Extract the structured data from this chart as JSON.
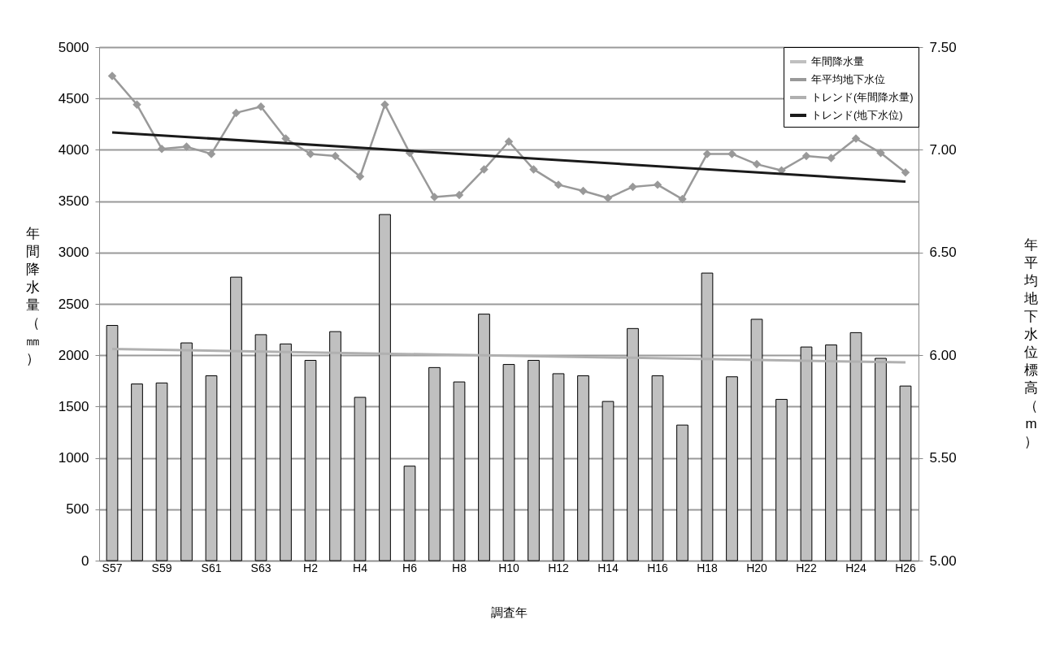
{
  "chart_data": {
    "type": "bar",
    "xlabel": "調査年",
    "ylabel": "年間降水量（㎜）",
    "y2label": "年平均地下水位標高（m）",
    "categories": [
      "S57",
      null,
      "S59",
      null,
      "S61",
      null,
      "S63",
      null,
      "H2",
      null,
      "H4",
      null,
      "H6",
      null,
      "H8",
      null,
      "H10",
      null,
      "H12",
      null,
      "H14",
      null,
      "H16",
      null,
      "H18",
      null,
      "H20",
      null,
      "H22",
      null,
      "H24",
      null,
      "H26"
    ],
    "series": [
      {
        "name": "年間降水量",
        "color": "#c0c0c0",
        "values": [
          2290,
          1720,
          1730,
          2120,
          1800,
          2760,
          2200,
          2110,
          1950,
          2230,
          1590,
          3370,
          920,
          1880,
          1740,
          2400,
          1910,
          1950,
          1820,
          1800,
          1550,
          2260,
          1800,
          1320,
          2800,
          1790,
          2350,
          1570,
          2080,
          2100,
          2220,
          1970,
          1700
        ]
      },
      {
        "name": "年平均地下水位",
        "type": "line",
        "axis": "y2",
        "marker": "diamond",
        "color": "#999999",
        "values": [
          7.36,
          7.22,
          7.005,
          7.015,
          6.98,
          7.18,
          7.21,
          7.055,
          6.98,
          6.97,
          6.87,
          7.22,
          6.985,
          6.77,
          6.78,
          6.905,
          7.04,
          6.905,
          6.83,
          6.8,
          6.765,
          6.82,
          6.83,
          6.76,
          6.98,
          6.98,
          6.93,
          6.9,
          6.97,
          6.96,
          7.055,
          6.985,
          6.89
        ]
      },
      {
        "name": "トレンド(年間降水量)",
        "type": "line",
        "color": "#b0b0b0",
        "x": [
          "S57",
          "H26"
        ],
        "values": [
          2060,
          1930
        ]
      },
      {
        "name": "トレンド(地下水位)",
        "type": "line",
        "axis": "y2",
        "color": "#1a1a1a",
        "x": [
          "S57",
          "H26"
        ],
        "values": [
          7.085,
          6.845
        ]
      }
    ],
    "ylim": [
      0,
      5000
    ],
    "yticks": [
      0,
      500,
      1000,
      1500,
      2000,
      2500,
      3000,
      3500,
      4000,
      4500,
      5000
    ],
    "y2lim": [
      5,
      7.5
    ],
    "y2ticks": [
      {
        "value": 5,
        "label": "5.00"
      },
      {
        "value": 5.5,
        "label": "5.50"
      },
      {
        "value": 6,
        "label": "6.00"
      },
      {
        "value": 6.5,
        "label": "6.50"
      },
      {
        "value": 7,
        "label": "7.00"
      },
      {
        "value": 7.5,
        "label": "7.50"
      }
    ],
    "grid": "y",
    "legend": "top right",
    "line_style": "solid"
  }
}
